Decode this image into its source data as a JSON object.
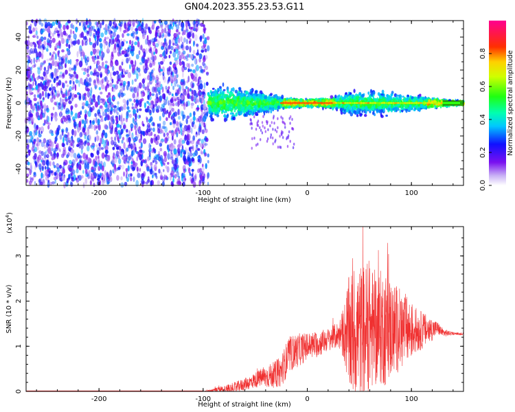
{
  "title": "GN04.2023.355.23.53.G11",
  "colors": {
    "snr_line": "#f03030",
    "axis": "#000000",
    "background": "#ffffff"
  },
  "chart_data": [
    {
      "type": "heatmap",
      "xlabel": "Height of straight line (km)",
      "ylabel": "Frequency (Hz)",
      "xlim": [
        -270,
        150
      ],
      "ylim": [
        -50,
        50
      ],
      "x_ticks": [
        -200,
        -100,
        0,
        100
      ],
      "y_ticks": [
        -40,
        -20,
        0,
        20,
        40
      ],
      "colorbar": {
        "label": "Normalized spectral amplitude",
        "range": [
          0.0,
          1.0
        ],
        "ticks": [
          0.0,
          0.2,
          0.4,
          0.6,
          0.8
        ]
      },
      "regions": [
        {
          "name": "noise",
          "x": [
            -270,
            -95
          ],
          "freq_span": [
            -50,
            50
          ],
          "amplitude": [
            0.05,
            0.35
          ]
        },
        {
          "name": "signal",
          "x": [
            -95,
            150
          ],
          "envelope_x": [
            -95,
            -70,
            -40,
            -20,
            0,
            25,
            40,
            70,
            100,
            130,
            150
          ],
          "envelope_halfwidth_hz": [
            9,
            10,
            6,
            3,
            2,
            3,
            7,
            7,
            5,
            2,
            1
          ],
          "amplitude": [
            0.3,
            0.9
          ]
        }
      ]
    },
    {
      "type": "line",
      "xlabel": "Height of straight line (km)",
      "ylabel": "SNR (10 * v/v)",
      "yscale_label": "(x10",
      "yscale_exp": "4",
      "yscale_close": ")",
      "xlim": [
        -270,
        150
      ],
      "ylim": [
        0,
        3.65
      ],
      "x_ticks": [
        -200,
        -100,
        0,
        100
      ],
      "y_ticks": [
        0,
        1,
        2,
        3
      ],
      "envelope": {
        "x": [
          -270,
          -100,
          -90,
          -70,
          -55,
          -45,
          -40,
          -30,
          -25,
          -20,
          -15,
          -5,
          0,
          10,
          20,
          30,
          35,
          40,
          45,
          55,
          65,
          75,
          85,
          95,
          105,
          115,
          125,
          130,
          140,
          150
        ],
        "base": [
          0.0,
          0.0,
          0.02,
          0.08,
          0.2,
          0.3,
          0.32,
          0.38,
          0.45,
          0.7,
          0.85,
          0.95,
          1.0,
          1.05,
          1.15,
          1.25,
          1.3,
          1.25,
          1.3,
          1.35,
          1.4,
          1.4,
          1.38,
          1.35,
          1.35,
          1.35,
          1.4,
          1.3,
          1.28,
          1.27
        ],
        "amp": [
          0.003,
          0.003,
          0.05,
          0.12,
          0.15,
          0.2,
          0.25,
          0.3,
          0.35,
          0.4,
          0.4,
          0.35,
          0.3,
          0.3,
          0.25,
          0.3,
          0.6,
          1.3,
          1.5,
          1.5,
          1.3,
          1.3,
          1.0,
          0.8,
          0.5,
          0.35,
          0.15,
          0.1,
          0.03,
          0.02
        ]
      }
    }
  ]
}
